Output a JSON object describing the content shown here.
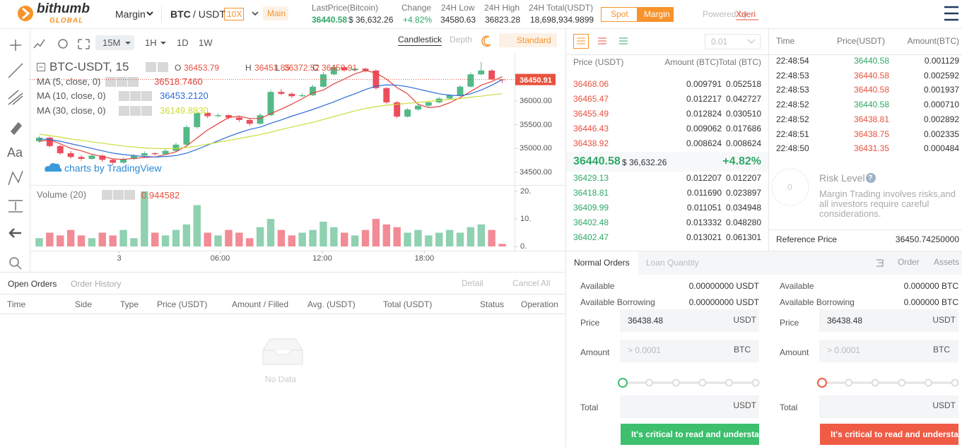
{
  "header": {
    "logo": "bithumb",
    "logo_sub": "GLOBAL",
    "mode": "Margin",
    "pair_base": "BTC",
    "pair_quote": "/ USDT",
    "leverage": "10X",
    "board": "Main",
    "stats": [
      {
        "label": "LastPrice(Bitcoin)",
        "value": "36440.58",
        "sub": "$ 36,632.26"
      },
      {
        "label": "Change",
        "value": "+4.82%"
      },
      {
        "label": "24H Low",
        "value": "34580.63"
      },
      {
        "label": "24H High",
        "value": "36823.28"
      },
      {
        "label": "24H Total(USDT)",
        "value": "18,698,934.9899"
      }
    ],
    "tabs": [
      "Spot",
      "Margin"
    ],
    "powered": "Powered by",
    "powered_link": "Xderi"
  },
  "chart_toolbar": {
    "intervals": [
      "15M",
      "1H",
      "1D",
      "1W"
    ],
    "views": [
      "Candlestick",
      "Depth"
    ],
    "style": "Standard"
  },
  "drawing_tools": {
    "text_tool": "Aa"
  },
  "chart_data": {
    "type": "candlestick",
    "title": "BTC-USDT, 15",
    "ohlc_labels": [
      "O",
      "H",
      "L",
      "C"
    ],
    "up_color": "#53b987",
    "down_color": "#eb4d5c",
    "candles": [
      [
        35150,
        35260,
        35120,
        35227
      ],
      [
        35227,
        35250,
        35020,
        35050
      ],
      [
        35050,
        35080,
        34870,
        34900
      ],
      [
        34900,
        34950,
        34790,
        34820
      ],
      [
        34820,
        34860,
        34740,
        34780
      ],
      [
        34780,
        34880,
        34760,
        34850
      ],
      [
        34850,
        34870,
        34720,
        34760
      ],
      [
        34760,
        34790,
        34660,
        34700
      ],
      [
        34700,
        34810,
        34680,
        34780
      ],
      [
        34780,
        34880,
        34750,
        34850
      ],
      [
        34850,
        34940,
        34820,
        34900
      ],
      [
        34900,
        34920,
        34850,
        34880
      ],
      [
        34880,
        34990,
        34860,
        34950
      ],
      [
        34950,
        35120,
        34930,
        35080
      ],
      [
        35080,
        35490,
        35060,
        35450
      ],
      [
        35450,
        35800,
        35420,
        35750
      ],
      [
        35750,
        35780,
        35640,
        35680
      ],
      [
        35680,
        35740,
        35650,
        35700
      ],
      [
        35700,
        35720,
        35610,
        35650
      ],
      [
        35650,
        35690,
        35560,
        35600
      ],
      [
        35600,
        35620,
        35480,
        35520
      ],
      [
        35520,
        35740,
        35500,
        35700
      ],
      [
        35700,
        36230,
        35680,
        36190
      ],
      [
        36190,
        36250,
        36120,
        36150
      ],
      [
        36150,
        36180,
        36060,
        36100
      ],
      [
        36100,
        36160,
        36080,
        36120
      ],
      [
        36120,
        36340,
        36100,
        36300
      ],
      [
        36300,
        36600,
        36280,
        36560
      ],
      [
        36560,
        36760,
        36540,
        36710
      ],
      [
        36710,
        36740,
        36620,
        36650
      ],
      [
        36650,
        36720,
        36630,
        36680
      ],
      [
        36680,
        36700,
        36600,
        36640
      ],
      [
        36640,
        36660,
        36240,
        36270
      ],
      [
        36270,
        36290,
        35940,
        35970
      ],
      [
        35970,
        36000,
        35640,
        35670
      ],
      [
        35670,
        35850,
        35650,
        35820
      ],
      [
        35820,
        35930,
        35790,
        35900
      ],
      [
        35900,
        36000,
        35870,
        35970
      ],
      [
        35970,
        36080,
        35950,
        36050
      ],
      [
        36050,
        36150,
        36020,
        36120
      ],
      [
        36120,
        36330,
        36100,
        36300
      ],
      [
        36300,
        36600,
        36280,
        36560
      ],
      [
        36560,
        36820,
        36540,
        36640
      ],
      [
        36640,
        36670,
        36450,
        36453.79
      ],
      [
        36453.79,
        36453.85,
        36372.52,
        36450.91
      ]
    ],
    "ylim": [
      34230,
      37010
    ],
    "yticks": [
      {
        "value": 34500,
        "label": "34500.00"
      },
      {
        "value": 35000,
        "label": "35000.00"
      },
      {
        "value": 35500,
        "label": "35500.00"
      },
      {
        "value": 36000,
        "label": "36000.00"
      }
    ],
    "xticks": [
      {
        "value": 7.6,
        "label": "3"
      },
      {
        "value": 17.2,
        "label": "06:00"
      },
      {
        "value": 26.9,
        "label": "12:00"
      },
      {
        "value": 36.6,
        "label": "18:00"
      }
    ],
    "ma": [
      {
        "name": "MA (5, close, 0)",
        "value": "36518.7460",
        "color": "#e0433a",
        "values": [
          35150,
          35180,
          35100,
          35000,
          34950,
          34880,
          34830,
          34780,
          34770,
          34790,
          34810,
          34820,
          34870,
          34930,
          35050,
          35220,
          35390,
          35520,
          35650,
          35680,
          35630,
          35630,
          35730,
          35830,
          35930,
          36050,
          36170,
          36230,
          36360,
          36460,
          36570,
          36640,
          36590,
          36460,
          36280,
          36150,
          35930,
          35860,
          35880,
          35960,
          36070,
          36200,
          36330,
          36410,
          36510
        ]
      },
      {
        "name": "MA (10, close, 0)",
        "value": "36453.2120",
        "color": "#2b6cd9",
        "values": [
          35200,
          35190,
          35150,
          35100,
          35050,
          35000,
          34950,
          34900,
          34870,
          34850,
          34830,
          34820,
          34830,
          34850,
          34900,
          34980,
          35070,
          35160,
          35250,
          35330,
          35400,
          35450,
          35530,
          35600,
          35680,
          35750,
          35820,
          35900,
          35980,
          36070,
          36150,
          36240,
          36310,
          36340,
          36330,
          36300,
          36250,
          36200,
          36150,
          36120,
          36110,
          36150,
          36230,
          36330,
          36450
        ]
      },
      {
        "name": "MA (30, close, 0)",
        "value": "36149.8830",
        "color": "#cbdc3a",
        "values": [
          35300,
          35270,
          35240,
          35200,
          35170,
          35140,
          35110,
          35080,
          35050,
          35030,
          35010,
          35000,
          34995,
          35000,
          35020,
          35050,
          35090,
          35130,
          35170,
          35210,
          35250,
          35290,
          35340,
          35400,
          35450,
          35500,
          35550,
          35610,
          35670,
          35730,
          35790,
          35840,
          35880,
          35910,
          35930,
          35950,
          35970,
          35990,
          36010,
          36030,
          36050,
          36080,
          36100,
          36130,
          36150
        ]
      }
    ],
    "volume": {
      "name": "Volume (20)",
      "ylim": [
        0,
        22.3
      ],
      "yticks": [
        {
          "value": 0,
          "label": "0."
        },
        {
          "value": 10,
          "label": "10."
        },
        {
          "value": 20,
          "label": "20."
        }
      ],
      "values": [
        3,
        5,
        4,
        6,
        4,
        3,
        5,
        4,
        6,
        3,
        20,
        5,
        4,
        6,
        8,
        15,
        5,
        4,
        6,
        5,
        3,
        7,
        10,
        6,
        4,
        5,
        6,
        9,
        7,
        5,
        4,
        6,
        10,
        8,
        7,
        5,
        6,
        4,
        5,
        6,
        5,
        7,
        8,
        6,
        0.944582
      ]
    },
    "watermark": "charts by TradingView"
  },
  "orders": {
    "tabs": [
      "Open Orders",
      "Order History"
    ],
    "actions": [
      "Detail",
      "Cancel All"
    ],
    "columns": [
      "Time",
      "Side",
      "Type",
      "Price (USDT)",
      "Amount / Filled",
      "Avg. (USDT)",
      "Total (USDT)",
      "Status",
      "Operation"
    ],
    "empty": "No Data"
  },
  "order_book": {
    "precision": "0.01",
    "columns": [
      "Price (USDT)",
      "Amount (BTC)",
      "Total (BTC)"
    ],
    "asks": {
      "color": "#e8513d",
      "rows": [
        [
          "36468.06",
          "0.009791",
          "0.052518"
        ],
        [
          "36465.47",
          "0.012217",
          "0.042727"
        ],
        [
          "36455.49",
          "0.012824",
          "0.030510"
        ],
        [
          "36446.43",
          "0.009062",
          "0.017686"
        ],
        [
          "36438.92",
          "0.008624",
          "0.008624"
        ]
      ]
    },
    "mid": {
      "price": "36440.58",
      "usd": "$ 36,632.26",
      "change": "+4.82%"
    },
    "bids": {
      "color": "#2fa866",
      "rows": [
        [
          "36429.13",
          "0.012207",
          "0.012207"
        ],
        [
          "36418.81",
          "0.011690",
          "0.023897"
        ],
        [
          "36409.99",
          "0.011051",
          "0.034948"
        ],
        [
          "36402.48",
          "0.013332",
          "0.048280"
        ],
        [
          "36402.47",
          "0.013021",
          "0.061301"
        ]
      ]
    }
  },
  "trades": {
    "columns": [
      "Time",
      "Price(USDT)",
      "Amount(BTC)"
    ],
    "rows": [
      {
        "time": "22:48:54",
        "price": "36440.58",
        "amount": "0.001129",
        "color": "#2fa866"
      },
      {
        "time": "22:48:53",
        "price": "36440.58",
        "amount": "0.002592",
        "color": "#e8513d"
      },
      {
        "time": "22:48:53",
        "price": "36440.58",
        "amount": "0.001937",
        "color": "#e8513d"
      },
      {
        "time": "22:48:52",
        "price": "36440.58",
        "amount": "0.000710",
        "color": "#2fa866"
      },
      {
        "time": "22:48:52",
        "price": "36438.81",
        "amount": "0.002892",
        "color": "#e8513d"
      },
      {
        "time": "22:48:51",
        "price": "36438.75",
        "amount": "0.002335",
        "color": "#e8513d"
      },
      {
        "time": "22:48:50",
        "price": "36431.35",
        "amount": "0.000484",
        "color": "#e8513d"
      }
    ]
  },
  "risk": {
    "title": "Risk Level",
    "help": "?",
    "gauge": "0",
    "lines": [
      "Margin Trading involves risks,and",
      "all investors require careful",
      "considerations."
    ],
    "reference_label": "Reference Price",
    "reference_value": "36450.74250000"
  },
  "form": {
    "tabs": [
      "Normal Orders",
      "Loan Quantity"
    ],
    "links": [
      "Order",
      "Assets"
    ],
    "sides": [
      {
        "available_label": "Available",
        "available": "0.00000000 USDT",
        "borrow_label": "Available Borrowing",
        "borrow": "0.00000000 USDT",
        "price_label": "Price",
        "price": "36438.48",
        "price_unit": "USDT",
        "amount_label": "Amount",
        "amount_placeholder": "> 0.0001",
        "amount_unit": "BTC",
        "total_label": "Total",
        "total_unit": "USDT",
        "button": "It's critical to read and understand",
        "color": "#3dbf6e"
      },
      {
        "available_label": "Available",
        "available": "0.000000 BTC",
        "borrow_label": "Available Borrowing",
        "borrow": "0.000000 BTC",
        "price_label": "Price",
        "price": "36438.48",
        "price_unit": "USDT",
        "amount_label": "Amount",
        "amount_placeholder": "> 0.0001",
        "amount_unit": "BTC",
        "total_label": "Total",
        "total_unit": "USDT",
        "button": "It's critical to read and understand",
        "color": "#ef5b45"
      }
    ]
  }
}
